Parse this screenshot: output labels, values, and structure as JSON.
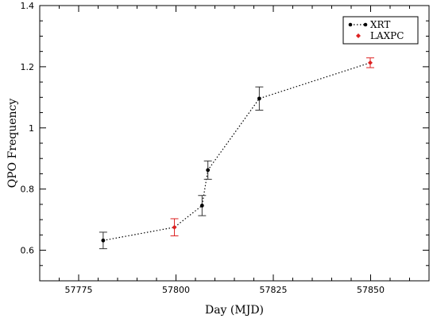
{
  "chart_data": {
    "type": "scatter",
    "xlabel": "Day (MJD)",
    "ylabel": "QPO Frequency",
    "xlim": [
      57765,
      57865
    ],
    "ylim": [
      0.5,
      1.4
    ],
    "xticks": [
      57775,
      57800,
      57825,
      57850
    ],
    "yticks": [
      0.6,
      0.8,
      1,
      1.2,
      1.4
    ],
    "legend_position": "top-right",
    "grid": false,
    "series": [
      {
        "name": "XRT",
        "color": "#000000",
        "line": "dotted",
        "points": [
          {
            "x": 57781.3,
            "y": 0.632,
            "err": 0.027
          },
          {
            "x": 57806.7,
            "y": 0.746,
            "err": 0.033
          },
          {
            "x": 57808.2,
            "y": 0.862,
            "err": 0.03
          },
          {
            "x": 57821.4,
            "y": 1.096,
            "err": 0.038
          }
        ]
      },
      {
        "name": "LAXPC",
        "color": "#dd2222",
        "line": "none",
        "points": [
          {
            "x": 57799.6,
            "y": 0.675,
            "err": 0.028
          },
          {
            "x": 57849.9,
            "y": 1.213,
            "err": 0.016
          }
        ]
      }
    ],
    "connecting_line_order": [
      {
        "x": 57781.3,
        "y": 0.632
      },
      {
        "x": 57799.6,
        "y": 0.675
      },
      {
        "x": 57806.7,
        "y": 0.746
      },
      {
        "x": 57808.2,
        "y": 0.862
      },
      {
        "x": 57821.4,
        "y": 1.096
      },
      {
        "x": 57849.9,
        "y": 1.213
      }
    ]
  }
}
